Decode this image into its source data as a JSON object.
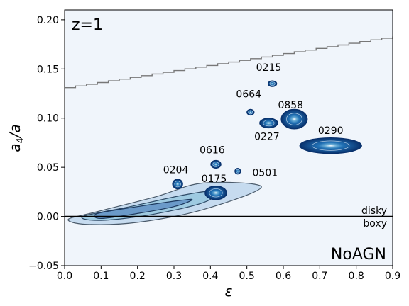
{
  "chart_data": {
    "type": "contour",
    "panel_label": "z=1",
    "model_label": "NoAGN",
    "xlabel": "ε",
    "ylabel": "a4/a",
    "xlim": [
      0.0,
      0.9
    ],
    "ylim": [
      -0.05,
      0.21
    ],
    "xticks": [
      "0.0",
      "0.1",
      "0.2",
      "0.3",
      "0.4",
      "0.5",
      "0.6",
      "0.7",
      "0.8",
      "0.9"
    ],
    "yticks": [
      "−0.05",
      "0.00",
      "0.05",
      "0.10",
      "0.15",
      "0.20"
    ],
    "threshold_labels": {
      "above": "disky",
      "below": "boxy"
    },
    "horizontal_line_y": 0.0,
    "upper_boundary": {
      "x": [
        0.0,
        0.9
      ],
      "y": [
        0.131,
        0.183
      ]
    },
    "population_contour": {
      "outer": [
        [
          0.01,
          -0.003
        ],
        [
          0.08,
          0.004
        ],
        [
          0.25,
          0.02
        ],
        [
          0.38,
          0.034
        ],
        [
          0.54,
          0.03
        ],
        [
          0.38,
          0.007
        ],
        [
          0.2,
          -0.006
        ],
        [
          0.06,
          -0.008
        ]
      ],
      "middle": [
        [
          0.05,
          0.0
        ],
        [
          0.18,
          0.01
        ],
        [
          0.33,
          0.022
        ],
        [
          0.42,
          0.026
        ],
        [
          0.38,
          0.014
        ],
        [
          0.24,
          0.002
        ],
        [
          0.1,
          -0.004
        ]
      ],
      "inner": [
        [
          0.09,
          0.003
        ],
        [
          0.2,
          0.01
        ],
        [
          0.31,
          0.016
        ],
        [
          0.35,
          0.017
        ],
        [
          0.3,
          0.01
        ],
        [
          0.2,
          0.003
        ],
        [
          0.1,
          -0.002
        ]
      ]
    },
    "galaxies": [
      {
        "id": "0215",
        "x": 0.57,
        "y": 0.135,
        "rx": 0.012,
        "ry": 0.003,
        "label_dx": -0.01,
        "label_dy": 0.013
      },
      {
        "id": "0664",
        "x": 0.51,
        "y": 0.106,
        "rx": 0.01,
        "ry": 0.003,
        "label_dx": -0.005,
        "label_dy": 0.015
      },
      {
        "id": "0858",
        "x": 0.63,
        "y": 0.099,
        "rx": 0.036,
        "ry": 0.01,
        "label_dx": -0.01,
        "label_dy": 0.011
      },
      {
        "id": "0227",
        "x": 0.56,
        "y": 0.095,
        "rx": 0.025,
        "ry": 0.005,
        "label_dx": -0.005,
        "label_dy": -0.017
      },
      {
        "id": "0290",
        "x": 0.73,
        "y": 0.072,
        "rx": 0.085,
        "ry": 0.008,
        "label_dx": 0.0,
        "label_dy": 0.012
      },
      {
        "id": "0616",
        "x": 0.415,
        "y": 0.053,
        "rx": 0.014,
        "ry": 0.004,
        "label_dx": -0.01,
        "label_dy": 0.011
      },
      {
        "id": "0501",
        "x": 0.475,
        "y": 0.046,
        "rx": 0.008,
        "ry": 0.003,
        "label_dx": 0.075,
        "label_dy": -0.005
      },
      {
        "id": "0204",
        "x": 0.31,
        "y": 0.033,
        "rx": 0.014,
        "ry": 0.005,
        "label_dx": -0.005,
        "label_dy": 0.011
      },
      {
        "id": "0175",
        "x": 0.415,
        "y": 0.024,
        "rx": 0.03,
        "ry": 0.007,
        "label_dx": -0.005,
        "label_dy": 0.011
      }
    ]
  }
}
